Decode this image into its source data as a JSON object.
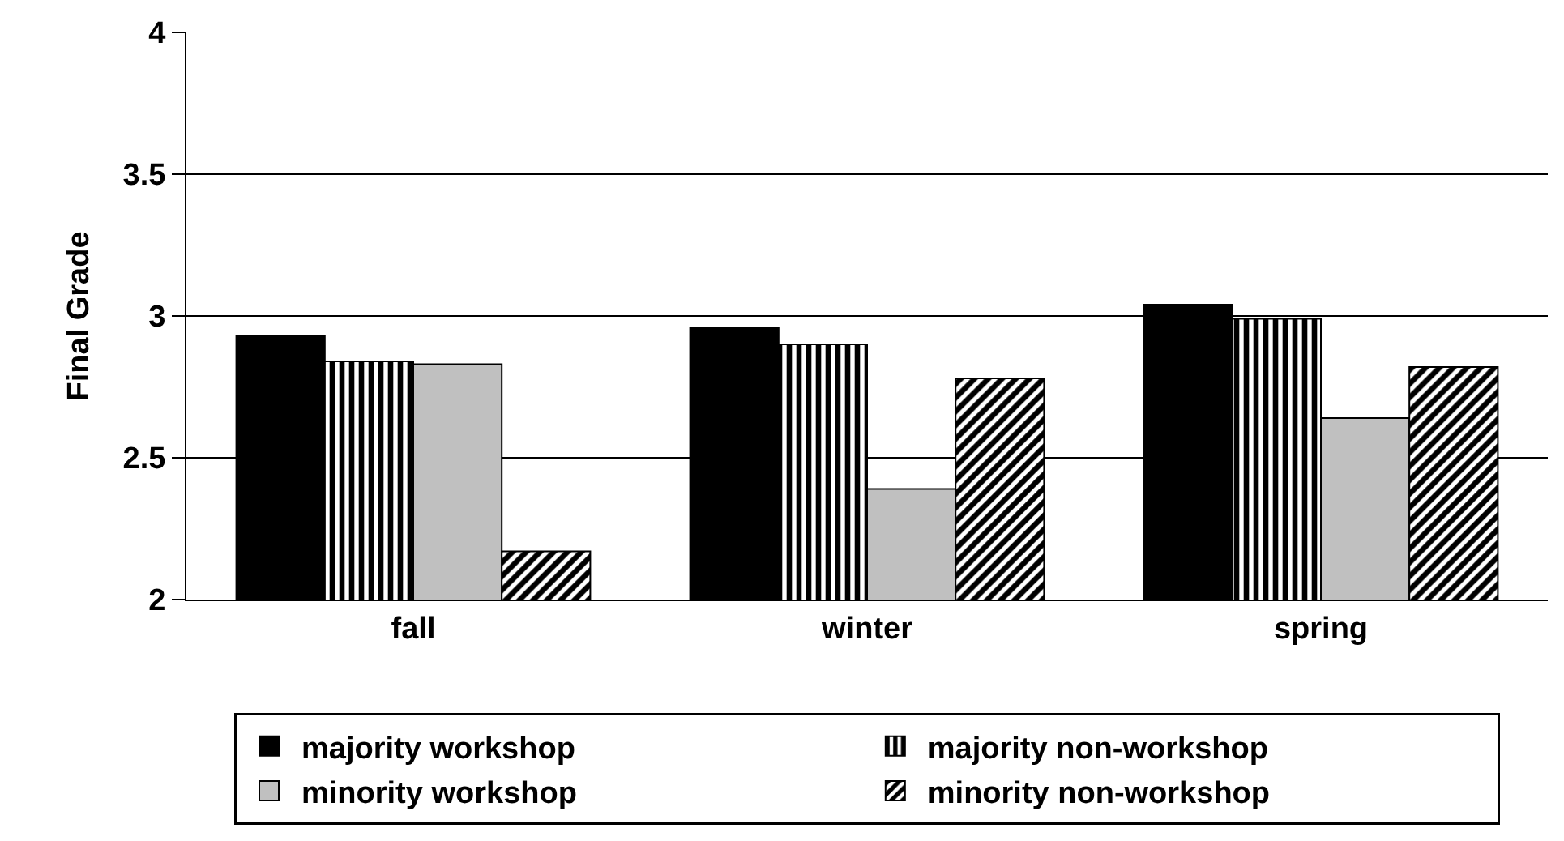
{
  "chart_data": {
    "type": "bar",
    "ylabel": "Final Grade",
    "categories": [
      "fall",
      "winter",
      "spring"
    ],
    "series": [
      {
        "name": "majority workshop",
        "color": "#000000",
        "values": [
          2.93,
          2.96,
          3.04
        ]
      },
      {
        "name": "majority non-workshop",
        "color": "#000000",
        "values": [
          2.84,
          2.9,
          2.99
        ]
      },
      {
        "name": "minority workshop",
        "color": "#c0c0c0",
        "values": [
          2.83,
          2.39,
          2.64
        ]
      },
      {
        "name": "minority non-workshop",
        "color": "#000000",
        "values": [
          2.17,
          2.78,
          2.82
        ]
      }
    ],
    "ylim": [
      2,
      4
    ],
    "yticks": [
      2,
      2.5,
      3,
      3.5,
      4
    ],
    "grid": "y",
    "legend": "bottom"
  }
}
